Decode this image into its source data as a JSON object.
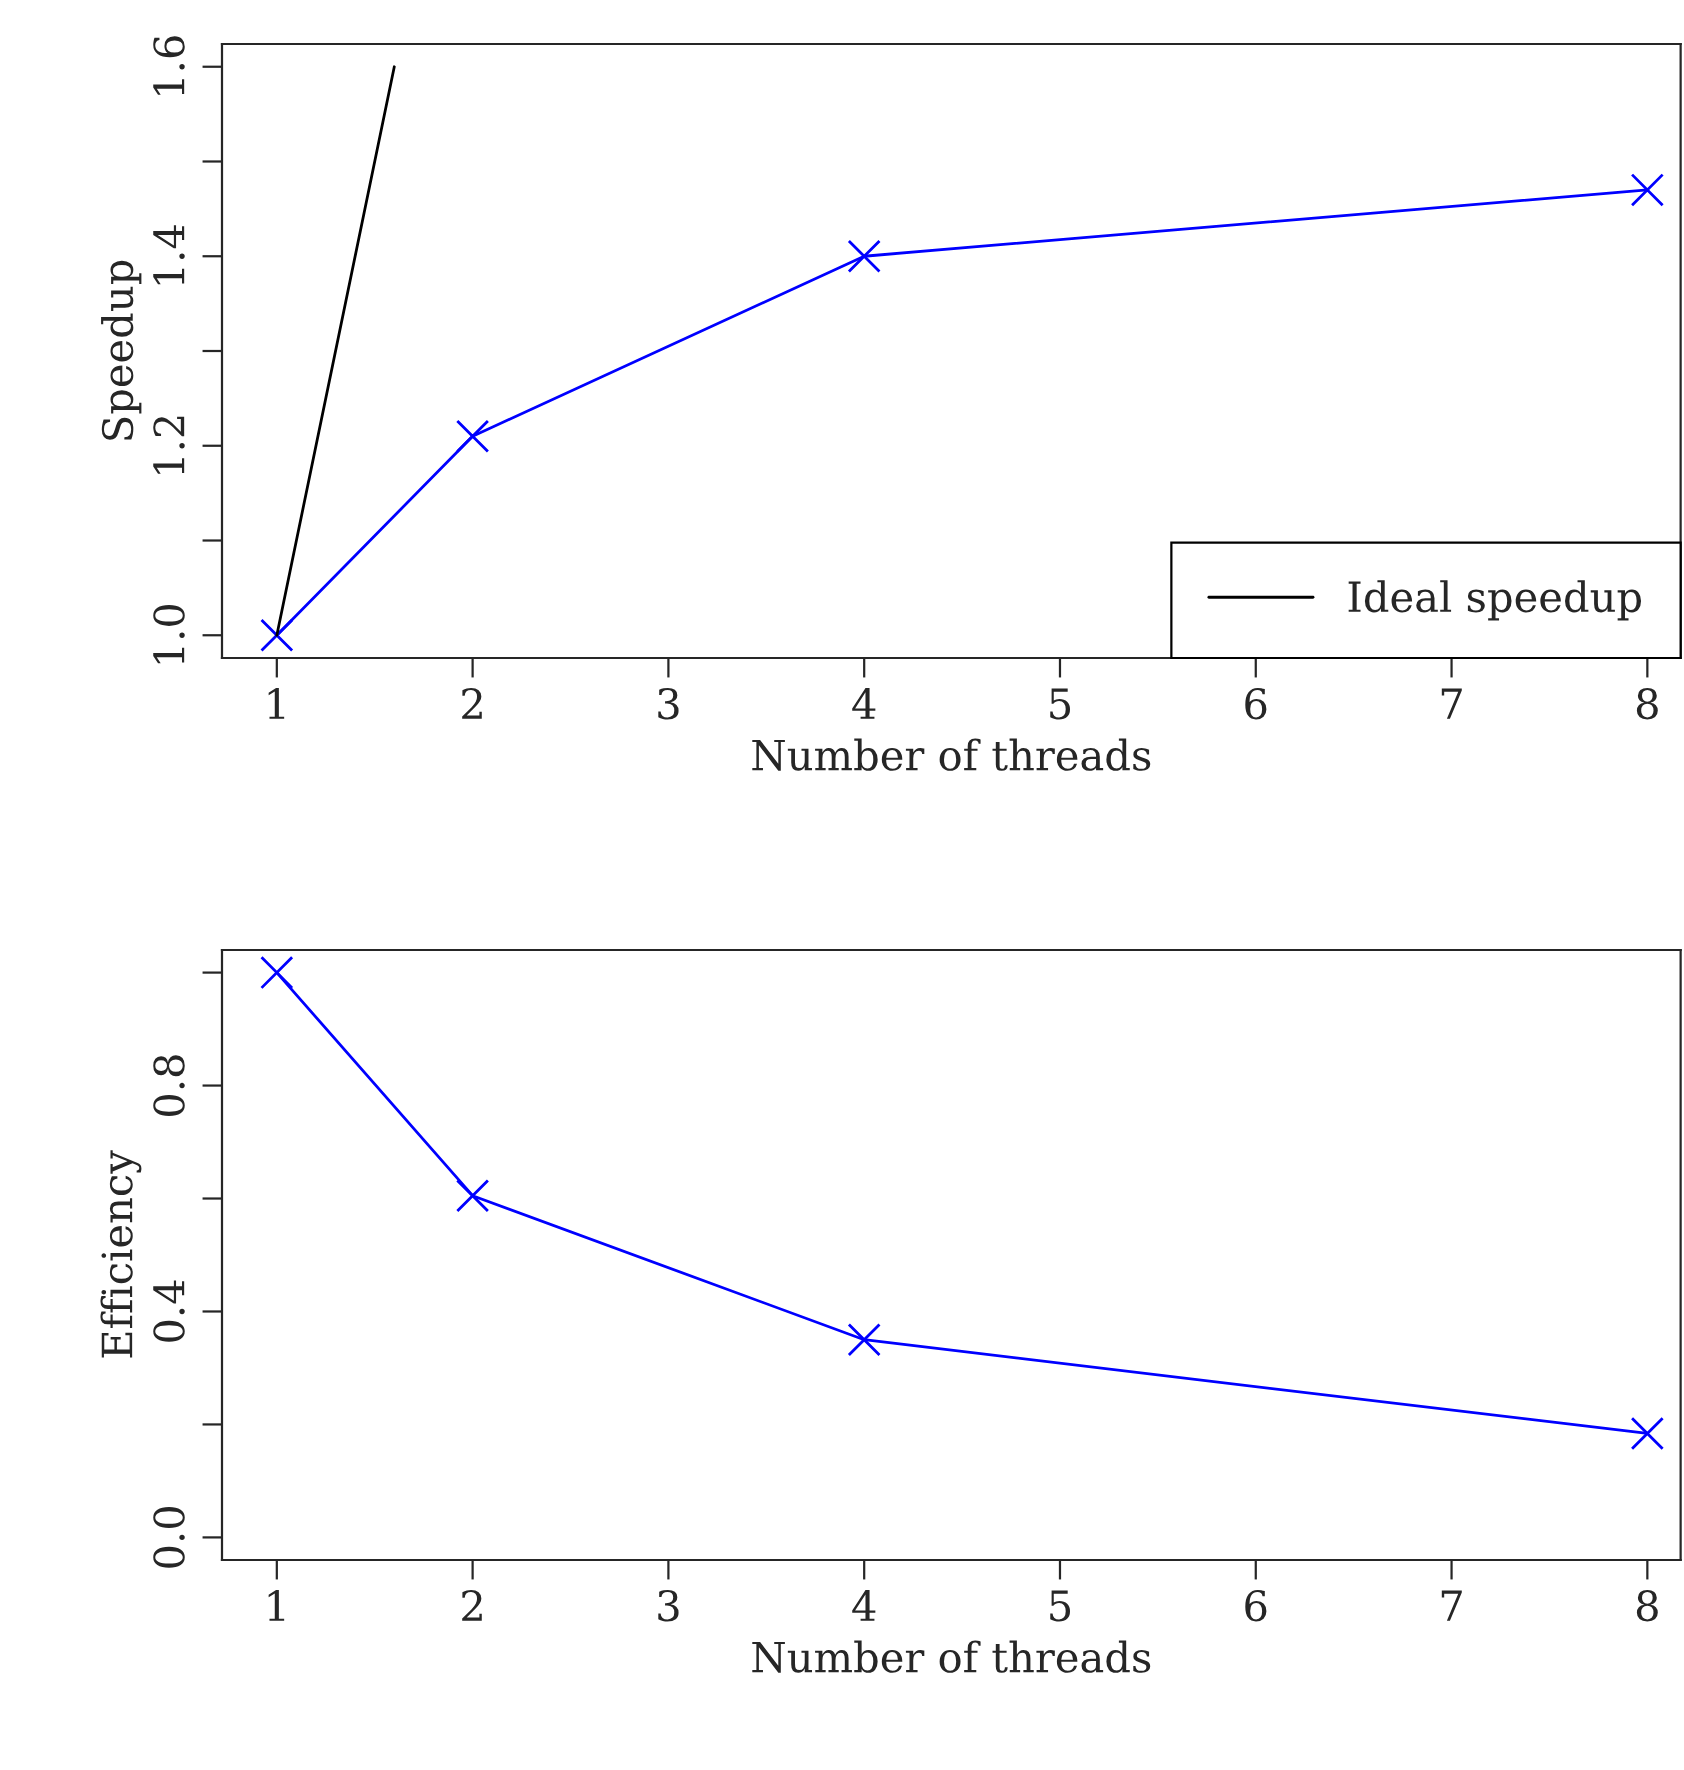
{
  "chart_data": [
    {
      "type": "line",
      "xlabel": "Number of threads",
      "ylabel": "Speedup",
      "marker": "cross",
      "legend": "bottom right",
      "grid": false,
      "xlim": [
        0.72,
        8.17
      ],
      "xticks": [
        1,
        2,
        3,
        4,
        5,
        6,
        7,
        8
      ],
      "ylim": [
        0.976,
        1.624
      ],
      "yticks": [
        {
          "value": 1.0,
          "label": "1.0"
        },
        {
          "value": 1.1,
          "label": null
        },
        {
          "value": 1.2,
          "label": "1.2"
        },
        {
          "value": 1.3,
          "label": null
        },
        {
          "value": 1.4,
          "label": "1.4"
        },
        {
          "value": 1.5,
          "label": null
        },
        {
          "value": 1.6,
          "label": "1.6"
        }
      ],
      "series": [
        {
          "color": "#0000ff",
          "x": [
            1,
            2,
            4,
            8
          ],
          "values": [
            1.0,
            1.21,
            1.4,
            1.47
          ]
        },
        {
          "name": "Ideal speedup",
          "color": "#000000",
          "marker": "none",
          "x": [
            1,
            1.6
          ],
          "values": [
            1.0,
            1.6
          ]
        }
      ]
    },
    {
      "type": "line",
      "xlabel": "Number of threads",
      "ylabel": "Efficiency",
      "marker": "cross",
      "grid": false,
      "xlim": [
        0.72,
        8.17
      ],
      "xticks": [
        1,
        2,
        3,
        4,
        5,
        6,
        7,
        8
      ],
      "ylim": [
        -0.04,
        1.04
      ],
      "yticks": [
        {
          "value": 0.0,
          "label": "0.0"
        },
        {
          "value": 0.2,
          "label": null
        },
        {
          "value": 0.4,
          "label": "0.4"
        },
        {
          "value": 0.6,
          "label": null
        },
        {
          "value": 0.8,
          "label": "0.8"
        },
        {
          "value": 1.0,
          "label": null
        }
      ],
      "series": [
        {
          "color": "#0000ff",
          "x": [
            1,
            2,
            4,
            8
          ],
          "values": [
            1.0,
            0.605,
            0.35,
            0.184
          ]
        }
      ]
    }
  ]
}
